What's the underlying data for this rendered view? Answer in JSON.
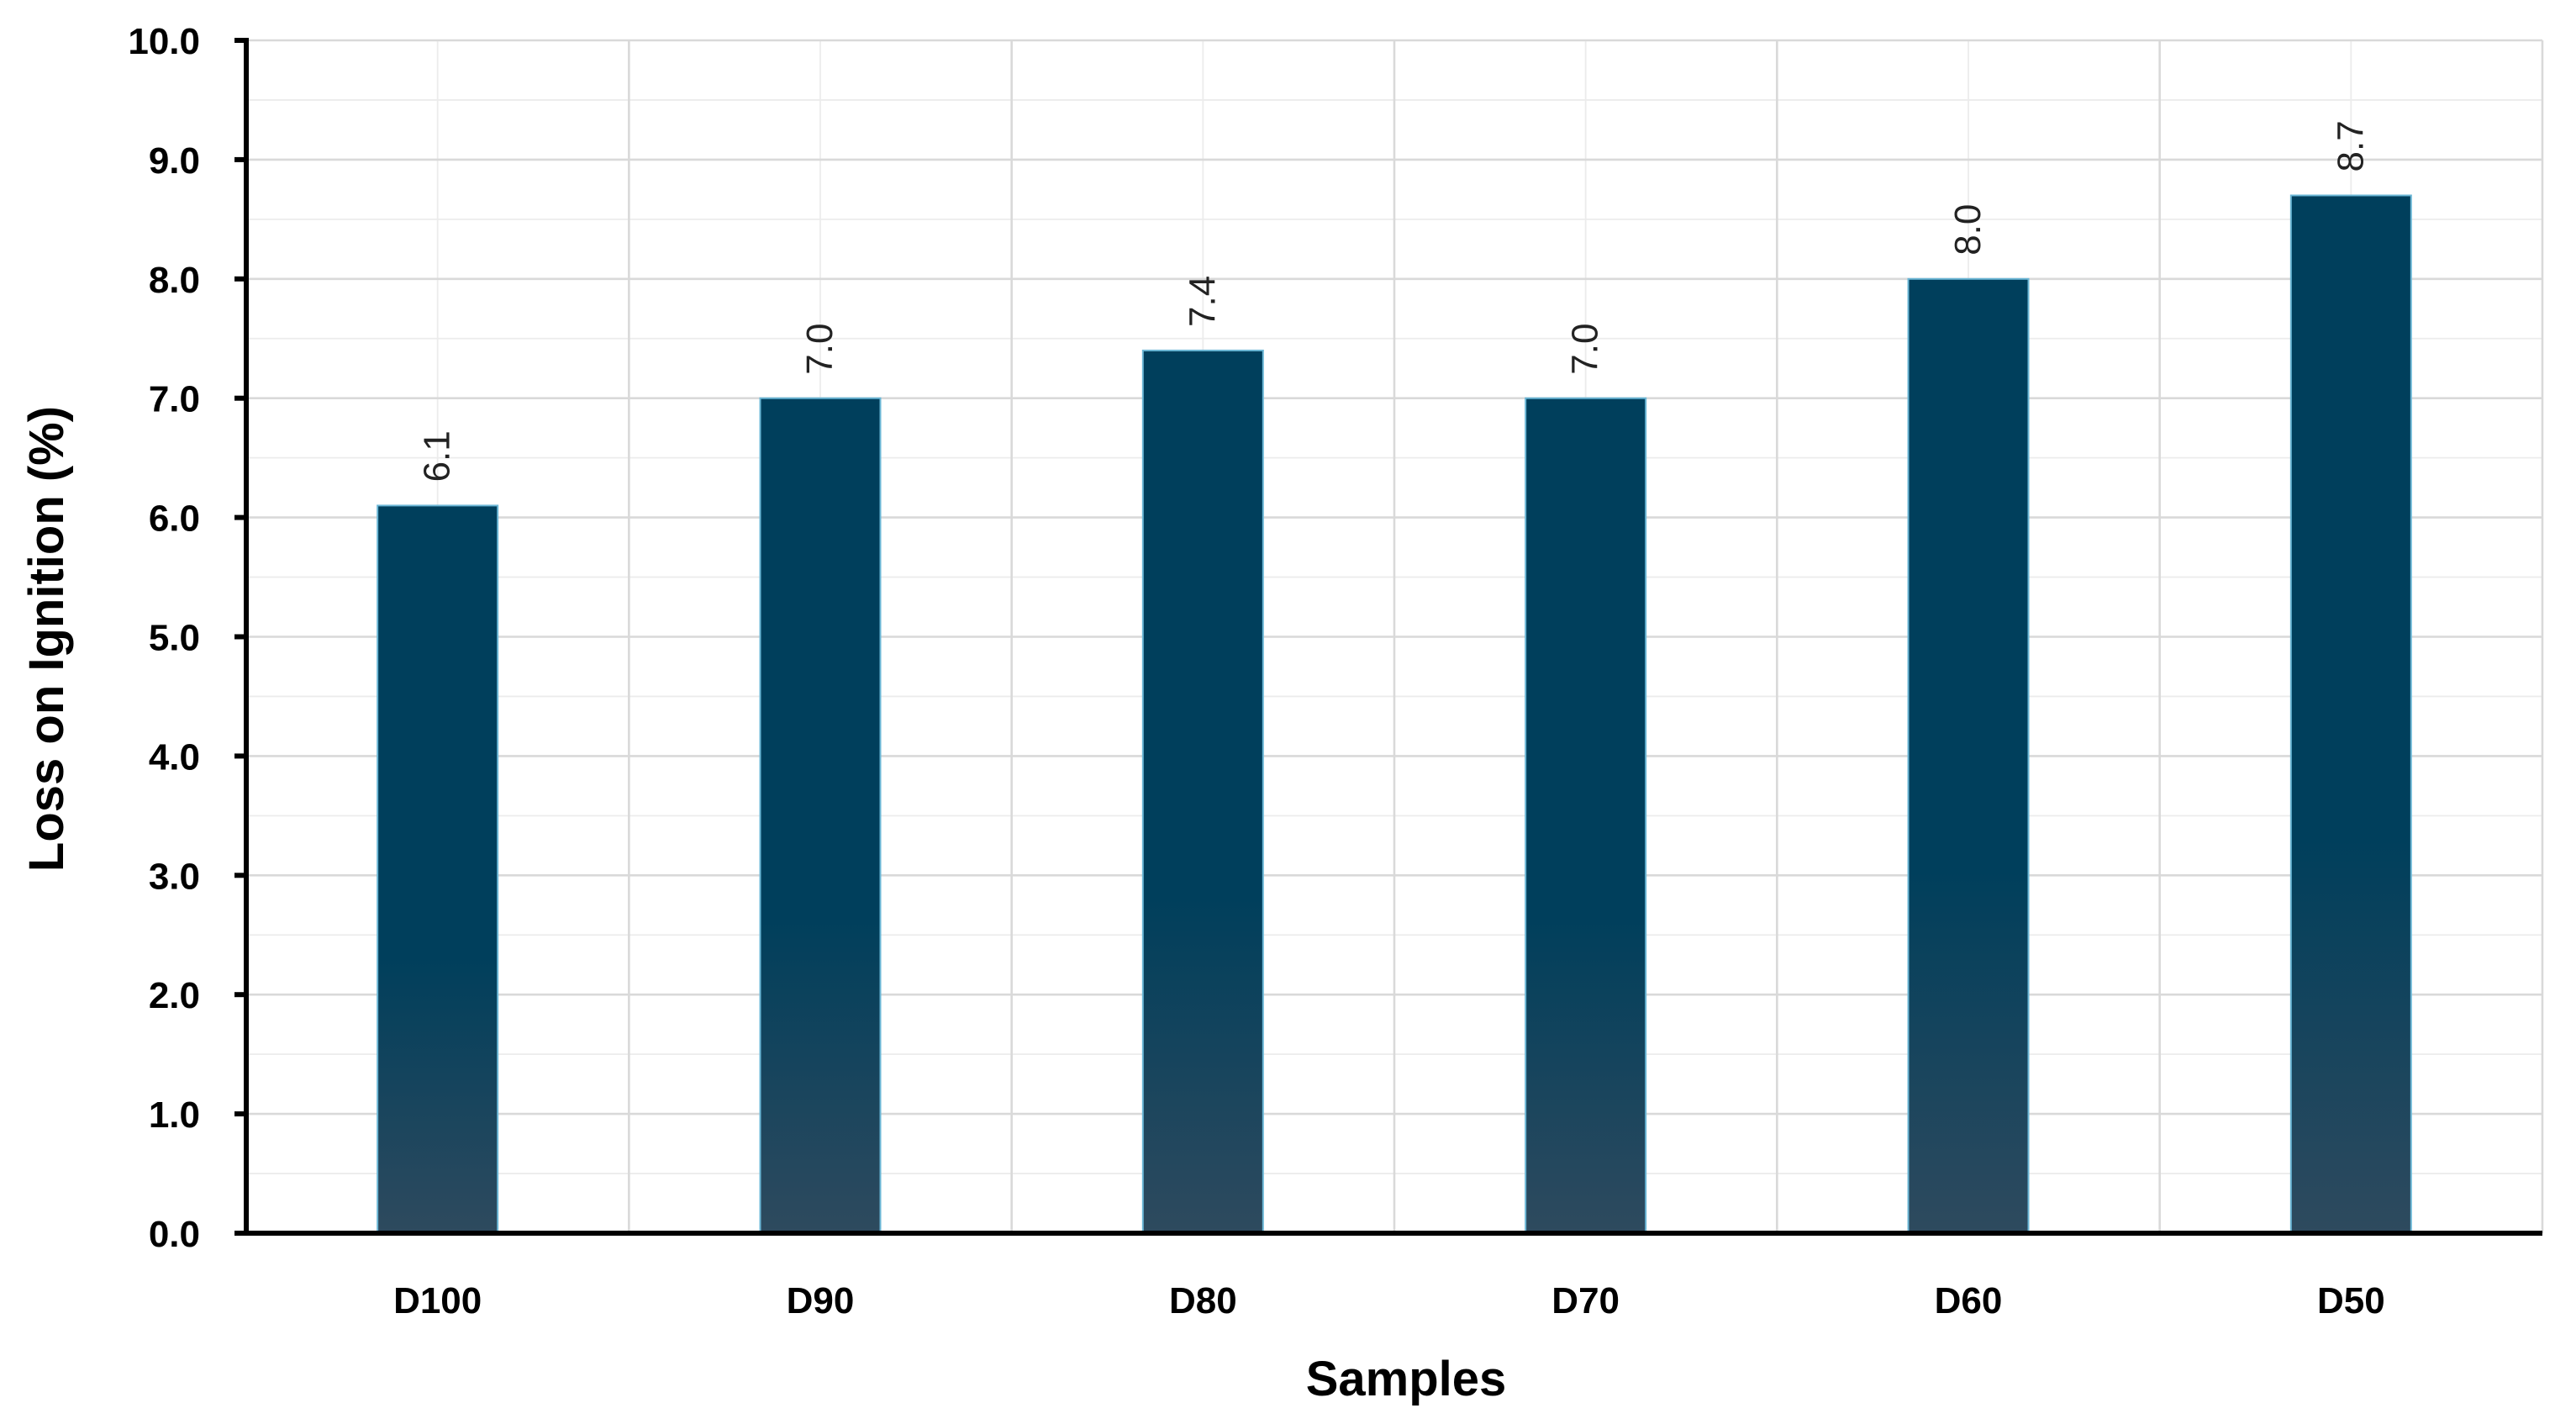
{
  "chart_data": {
    "type": "bar",
    "title": "",
    "xlabel": "Samples",
    "ylabel": "Loss on Ignition (%)",
    "categories": [
      "D100",
      "D90",
      "D80",
      "D70",
      "D60",
      "D50"
    ],
    "values": [
      6.1,
      7.0,
      7.4,
      7.0,
      8.0,
      8.7
    ],
    "data_labels": [
      "6.1",
      "7.0",
      "7.4",
      "7.0",
      "8.0",
      "8.7"
    ],
    "yticks": [
      "0.0",
      "1.0",
      "2.0",
      "3.0",
      "4.0",
      "5.0",
      "6.0",
      "7.0",
      "8.0",
      "9.0",
      "10.0"
    ],
    "ylim": [
      0,
      10
    ],
    "grid": true,
    "minor_grid": true,
    "legend": "none",
    "colors": {
      "bar_top": "#003f5c",
      "bar_bottom": "#2e4a5e",
      "bar_edge": "#6bb7d6",
      "grid_major": "#d9d9d9",
      "grid_minor": "#ececec",
      "axis": "#000000"
    }
  }
}
